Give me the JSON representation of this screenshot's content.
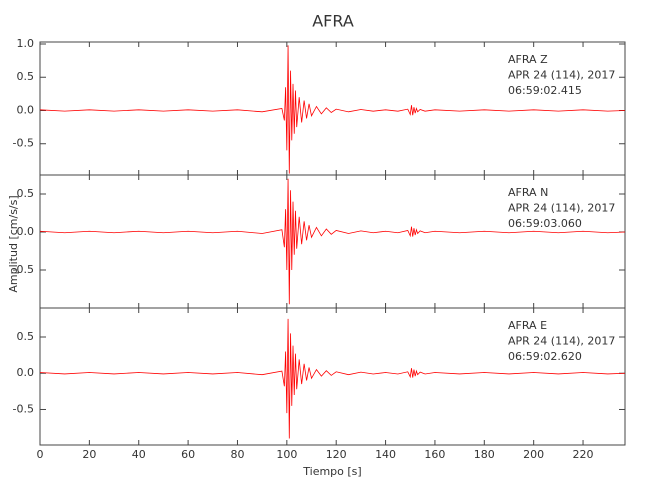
{
  "title": "AFRA",
  "y_label": "Amplitud [cm/s/s]",
  "chart_data": [
    {
      "type": "line",
      "color": "#ff0000",
      "annotations": [
        "AFRA   Z",
        "APR 24 (114), 2017",
        "06:59:02.415"
      ],
      "ylim": [
        -0.97,
        1.03
      ],
      "yticks": [
        {
          "value": 1,
          "label": "1.0"
        },
        0.5,
        {
          "value": 0,
          "label": "0.0"
        },
        -0.5
      ],
      "x": [
        0,
        10,
        20,
        30,
        40,
        50,
        60,
        70,
        80,
        90,
        98,
        99,
        99.5,
        100,
        100.5,
        101,
        101.5,
        102,
        102.5,
        103,
        103.5,
        104,
        105,
        106,
        107,
        108,
        109,
        110,
        112,
        114,
        116,
        118,
        120,
        125,
        130,
        135,
        140,
        145,
        149,
        150,
        150.5,
        151,
        151.5,
        152,
        152.5,
        153,
        154,
        156,
        160,
        170,
        180,
        190,
        200,
        210,
        220,
        230,
        237
      ],
      "values": [
        0.01,
        -0.01,
        0.01,
        -0.01,
        0.01,
        -0.01,
        0.01,
        -0.01,
        0.01,
        -0.02,
        0.03,
        -0.15,
        0.35,
        -0.6,
        0.98,
        -0.95,
        0.6,
        -0.45,
        0.4,
        -0.35,
        0.3,
        -0.25,
        0.2,
        -0.18,
        0.15,
        -0.12,
        0.1,
        -0.08,
        0.06,
        -0.05,
        0.04,
        -0.03,
        0.02,
        -0.02,
        0.015,
        -0.01,
        0.01,
        -0.01,
        0.02,
        -0.06,
        0.08,
        -0.07,
        0.05,
        -0.04,
        0.03,
        -0.02,
        0.015,
        -0.01,
        0.01,
        -0.01,
        0.01,
        -0.01,
        0.01,
        -0.01,
        0.01,
        -0.01,
        0.0
      ]
    },
    {
      "type": "line",
      "color": "#ff0000",
      "annotations": [
        "AFRA   N",
        "APR 24 (114), 2017",
        "06:59:03.060"
      ],
      "ylim": [
        -1.0,
        0.75
      ],
      "yticks": [
        0.5,
        {
          "value": 0,
          "label": "0.0"
        },
        -0.5
      ],
      "x": [
        0,
        10,
        20,
        30,
        40,
        50,
        60,
        70,
        80,
        90,
        98,
        99,
        99.5,
        100,
        100.5,
        101,
        101.5,
        102,
        102.5,
        103,
        103.5,
        104,
        105,
        106,
        107,
        108,
        109,
        110,
        112,
        114,
        116,
        118,
        120,
        125,
        130,
        135,
        140,
        145,
        149,
        150,
        150.5,
        151,
        151.5,
        152,
        152.5,
        153,
        154,
        156,
        160,
        170,
        180,
        190,
        200,
        210,
        220,
        230,
        237
      ],
      "values": [
        0.01,
        -0.01,
        0.01,
        -0.01,
        0.01,
        -0.01,
        0.01,
        -0.01,
        0.01,
        -0.02,
        0.03,
        -0.2,
        0.3,
        -0.5,
        0.7,
        -0.95,
        0.55,
        -0.5,
        0.4,
        -0.3,
        0.28,
        -0.22,
        0.2,
        -0.16,
        0.14,
        -0.11,
        0.09,
        -0.07,
        0.06,
        -0.05,
        0.04,
        -0.03,
        0.02,
        -0.02,
        0.015,
        -0.01,
        0.01,
        -0.01,
        0.02,
        -0.05,
        0.07,
        -0.06,
        0.05,
        -0.04,
        0.03,
        -0.02,
        0.015,
        -0.01,
        0.01,
        -0.01,
        0.01,
        -0.01,
        0.01,
        -0.01,
        0.01,
        -0.01,
        0.0
      ]
    },
    {
      "type": "line",
      "color": "#ff0000",
      "annotations": [
        "AFRA   E",
        "APR 24 (114), 2017",
        "06:59:02.620"
      ],
      "ylim": [
        -0.99,
        0.9
      ],
      "yticks": [
        0.5,
        {
          "value": 0,
          "label": "0.0"
        },
        -0.5
      ],
      "xlabel": "Tiempo [s]",
      "xlim": [
        0,
        237
      ],
      "xticks": [
        0,
        20,
        40,
        60,
        80,
        100,
        120,
        140,
        160,
        180,
        200,
        220
      ],
      "x": [
        0,
        10,
        20,
        30,
        40,
        50,
        60,
        70,
        80,
        90,
        98,
        99,
        99.5,
        100,
        100.5,
        101,
        101.5,
        102,
        102.5,
        103,
        103.5,
        104,
        105,
        106,
        107,
        108,
        109,
        110,
        112,
        114,
        116,
        118,
        120,
        125,
        130,
        135,
        140,
        145,
        149,
        150,
        150.5,
        151,
        151.5,
        152,
        152.5,
        153,
        154,
        156,
        160,
        170,
        180,
        190,
        200,
        210,
        220,
        230,
        237
      ],
      "values": [
        0.01,
        -0.01,
        0.01,
        -0.01,
        0.01,
        -0.01,
        0.01,
        -0.01,
        0.01,
        -0.02,
        0.03,
        -0.18,
        0.3,
        -0.55,
        0.75,
        -0.9,
        0.55,
        -0.45,
        0.38,
        -0.3,
        0.27,
        -0.22,
        0.19,
        -0.15,
        0.13,
        -0.1,
        0.08,
        -0.07,
        0.05,
        -0.04,
        0.035,
        -0.03,
        0.02,
        -0.02,
        0.015,
        -0.01,
        0.01,
        -0.01,
        0.02,
        -0.05,
        0.07,
        -0.06,
        0.05,
        -0.04,
        0.03,
        -0.02,
        0.015,
        -0.01,
        0.01,
        -0.01,
        0.01,
        -0.01,
        0.01,
        -0.01,
        0.01,
        -0.01,
        0.0
      ]
    }
  ]
}
